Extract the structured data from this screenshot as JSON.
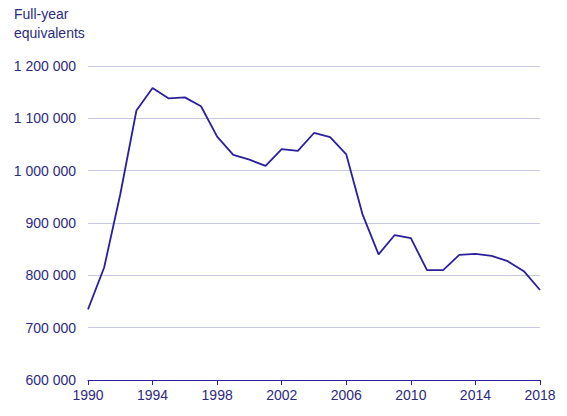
{
  "chart_data": {
    "type": "line",
    "ylabel": "Full-year equivalents",
    "x": [
      1990,
      1991,
      1992,
      1993,
      1994,
      1995,
      1996,
      1997,
      1998,
      1999,
      2000,
      2001,
      2002,
      2003,
      2004,
      2005,
      2006,
      2007,
      2008,
      2009,
      2010,
      2011,
      2012,
      2013,
      2014,
      2015,
      2016,
      2017,
      2018
    ],
    "values": [
      735000,
      815000,
      955000,
      1115000,
      1158000,
      1138000,
      1140000,
      1123000,
      1065000,
      1030000,
      1021000,
      1009000,
      1041000,
      1038000,
      1072000,
      1064000,
      1031000,
      917000,
      840000,
      877000,
      871000,
      810000,
      810000,
      839000,
      841000,
      837000,
      827000,
      808000,
      772000
    ],
    "color": "#2b1f9e",
    "xlim": [
      1990,
      2018
    ],
    "xticks": [
      1990,
      1994,
      1998,
      2002,
      2006,
      2010,
      2014,
      2018
    ],
    "ylim": [
      600000,
      1200000
    ],
    "yticks": [
      {
        "value": 600000,
        "label": "600 000"
      },
      {
        "value": 700000,
        "label": "700 000"
      },
      {
        "value": 800000,
        "label": "800 000"
      },
      {
        "value": 900000,
        "label": "900 000"
      },
      {
        "value": 1000000,
        "label": "1 000 000"
      },
      {
        "value": 1100000,
        "label": "1 100 000"
      },
      {
        "value": 1200000,
        "label": "1 200 000"
      }
    ],
    "grid": true
  }
}
